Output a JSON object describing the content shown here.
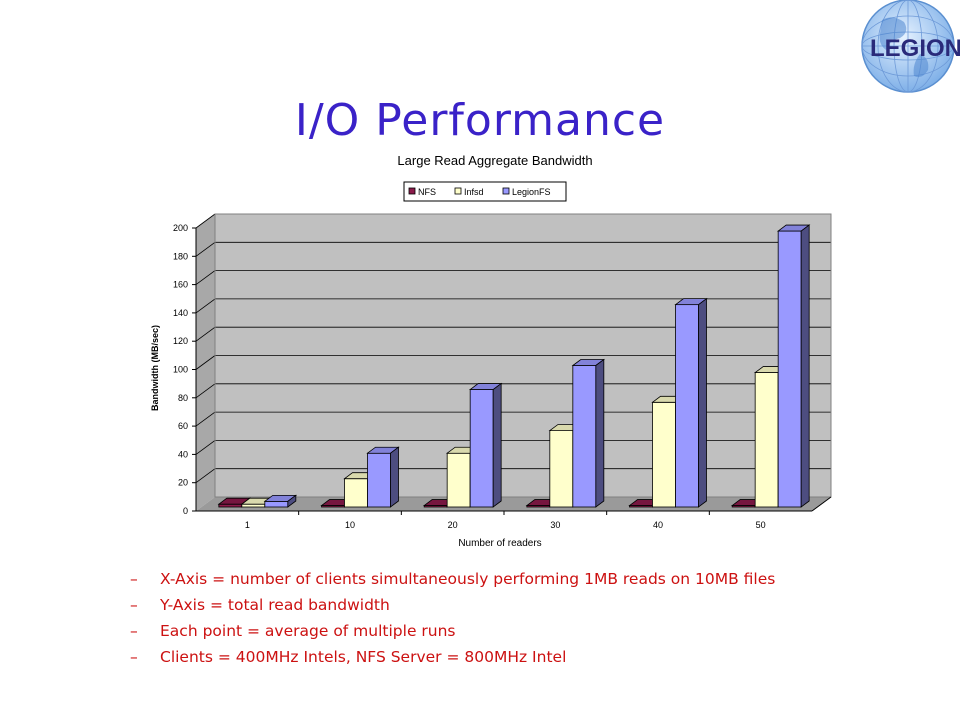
{
  "slide": {
    "title": "I/O Performance",
    "logo_text": "LEGION"
  },
  "colors": {
    "title": "#3a22c8",
    "bullet_text": "#cc1111",
    "nfs": "#8b1a4a",
    "infsd": "#ffffcc",
    "legionfs": "#9999ff",
    "plot_bg": "#c0c0c0"
  },
  "chart_data": {
    "type": "bar",
    "title": "Large Read Aggregate Bandwidth",
    "xlabel": "Number of readers",
    "ylabel": "Bandwidth (MB/sec)",
    "categories": [
      "1",
      "10",
      "20",
      "30",
      "40",
      "50"
    ],
    "ylim": [
      0,
      200
    ],
    "yticks": [
      0,
      20,
      40,
      60,
      80,
      100,
      120,
      140,
      160,
      180,
      200
    ],
    "legend_position": "top",
    "grid": true,
    "series": [
      {
        "name": "NFS",
        "color": "#8b1a4a",
        "values": [
          2,
          1,
          1,
          1,
          1,
          1
        ]
      },
      {
        "name": "Infsd",
        "color": "#ffffcc",
        "values": [
          2,
          20,
          38,
          54,
          74,
          95
        ]
      },
      {
        "name": "LegionFS",
        "color": "#9999ff",
        "values": [
          4,
          38,
          83,
          100,
          143,
          195
        ]
      }
    ]
  },
  "bullets": {
    "dash": "–",
    "items": [
      "X-Axis = number of clients simultaneously performing 1MB reads on 10MB files",
      "Y-Axis = total read bandwidth",
      "Each point = average of multiple runs",
      "Clients = 400MHz Intels, NFS Server = 800MHz Intel"
    ]
  }
}
